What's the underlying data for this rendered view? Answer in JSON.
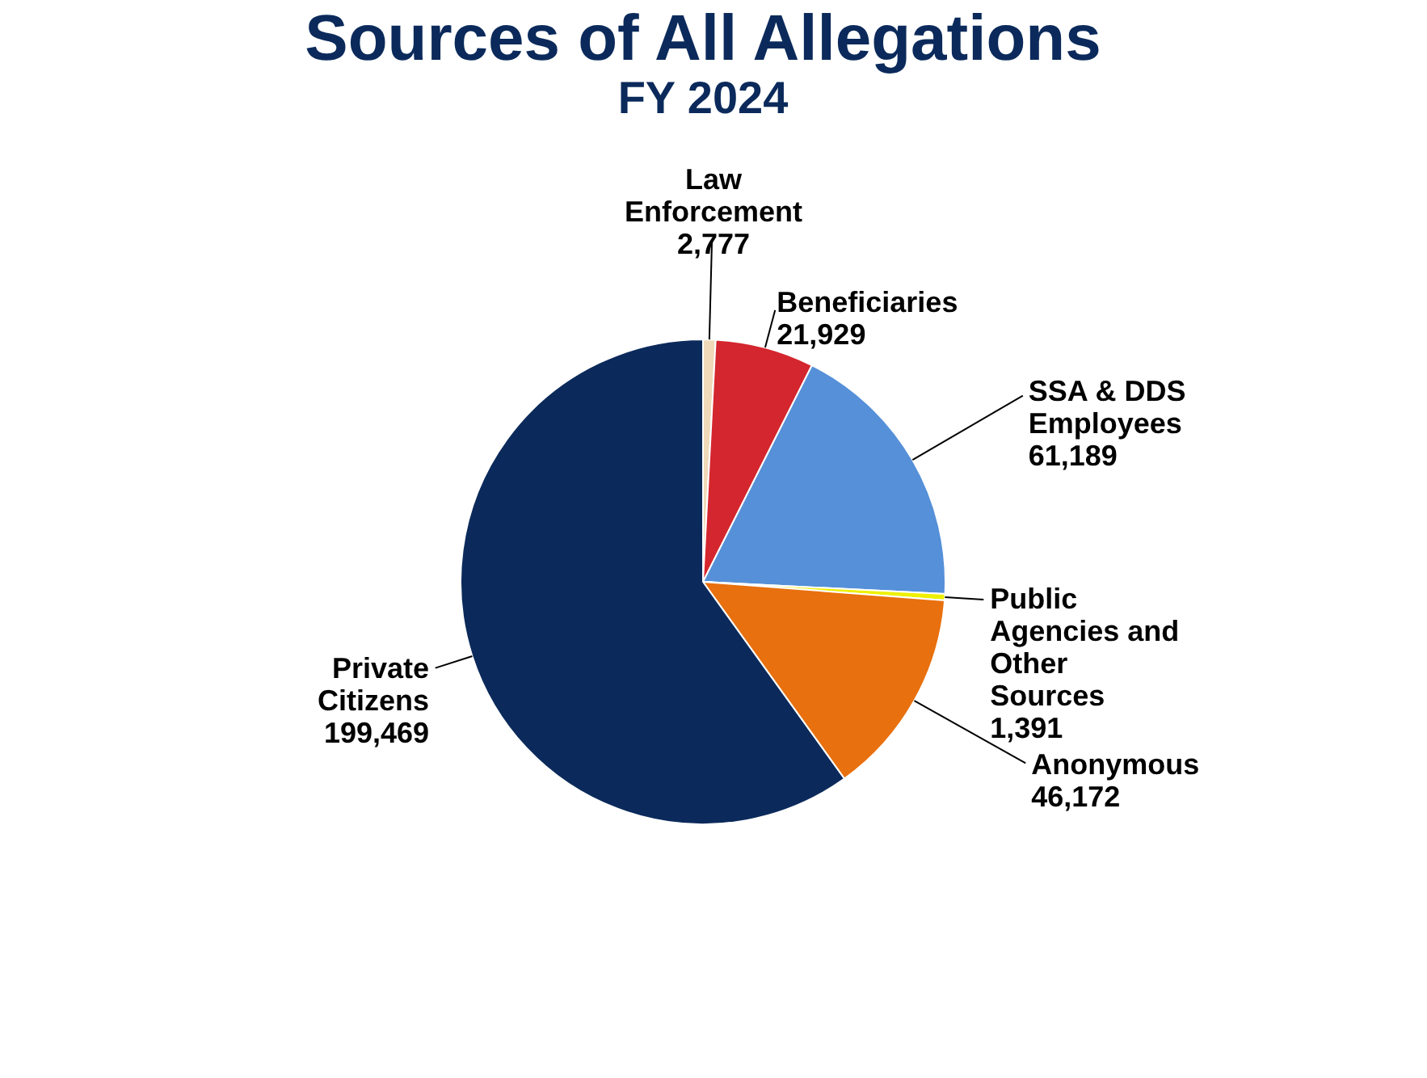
{
  "chart_data": {
    "type": "pie",
    "title": "Sources of All Allegations",
    "subtitle": "FY 2024",
    "categories": [
      "Law Enforcement",
      "Beneficiaries",
      "SSA & DDS Employees",
      "Public Agencies and Other Sources",
      "Anonymous",
      "Private Citizens"
    ],
    "values": [
      2777,
      21929,
      61189,
      1391,
      46172,
      199469
    ],
    "colors": [
      "#efd9b8",
      "#d4262e",
      "#5590d8",
      "#eef000",
      "#e8700e",
      "#0b2a5b"
    ],
    "value_labels": [
      "2,777",
      "21,929",
      "61,189",
      "1,391",
      "46,172",
      "199,469"
    ],
    "legend": false
  }
}
